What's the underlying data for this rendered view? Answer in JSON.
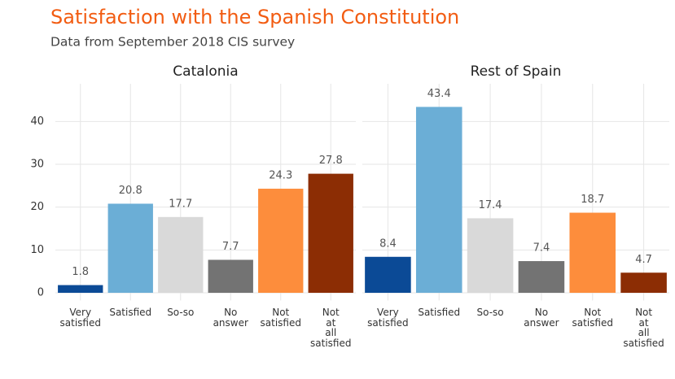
{
  "title": "Satisfaction with the Spanish Constitution",
  "subtitle": "Data from September 2018 CIS survey",
  "chart_data": [
    {
      "type": "bar",
      "title": "Catalonia",
      "categories": [
        "Very\nsatisfied",
        "Satisfied",
        "So-so",
        "No\nanswer",
        "Not\nsatisfied",
        "Not\nat\nall\nsatisfied"
      ],
      "values": [
        1.8,
        20.8,
        17.7,
        7.7,
        24.3,
        27.8
      ],
      "colors": [
        "#0b4a96",
        "#6baed6",
        "#d9d9d9",
        "#737373",
        "#fd8d3c",
        "#8c2d04"
      ],
      "ylim": [
        -1.8,
        48.8
      ],
      "yticks": [
        0,
        10,
        20,
        30,
        40
      ],
      "grid": true
    },
    {
      "type": "bar",
      "title": "Rest of Spain",
      "categories": [
        "Very\nsatisfied",
        "Satisfied",
        "So-so",
        "No\nanswer",
        "Not\nsatisfied",
        "Not\nat\nall\nsatisfied"
      ],
      "values": [
        8.4,
        43.4,
        17.4,
        7.4,
        18.7,
        4.7
      ],
      "colors": [
        "#0b4a96",
        "#6baed6",
        "#d9d9d9",
        "#737373",
        "#fd8d3c",
        "#8c2d04"
      ],
      "ylim": [
        -1.8,
        48.8
      ],
      "yticks": [
        0,
        10,
        20,
        30,
        40
      ],
      "grid": true
    }
  ]
}
